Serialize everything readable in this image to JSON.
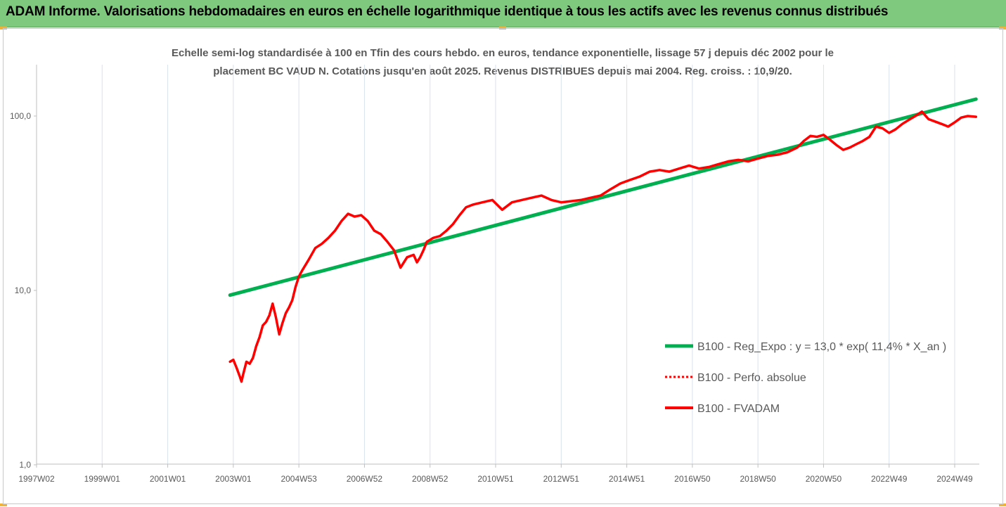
{
  "header": {
    "title": "ADAM Informe. Valorisations hebdomadaires en euros en échelle logarithmique identique à tous les actifs avec les revenus connus distribués"
  },
  "chart_data": {
    "type": "line",
    "title_line1": "Echelle semi-log standardisée à 100 en Tfin des cours hebdo. en euros, tendance exponentielle, lissage 57 j depuis déc 2002 pour le",
    "title_line2": "placement BC VAUD N. Cotations jusqu'en août 2025. Revenus DISTRIBUES depuis mai 2004. Reg. croiss. : 10,9/20.",
    "y_scale": "log",
    "ylim": [
      1,
      200
    ],
    "y_ticks": [
      1,
      10,
      100
    ],
    "y_tick_labels": [
      "1,0",
      "10,0",
      "100,0"
    ],
    "x_tick_labels": [
      "1997W02",
      "1999W01",
      "2001W01",
      "2003W01",
      "2004W53",
      "2006W52",
      "2008W52",
      "2010W51",
      "2012W51",
      "2014W51",
      "2016W50",
      "2018W50",
      "2020W50",
      "2022W49",
      "2024W49"
    ],
    "x_tick_years": [
      1997,
      1999,
      2001,
      2003,
      2005,
      2007,
      2009,
      2011,
      2013,
      2015,
      2017,
      2019,
      2021,
      2023,
      2025
    ],
    "xlim": [
      1997,
      2025.75
    ],
    "grid": "vertical",
    "legend_position": "right",
    "colors": {
      "trend": "#00b050",
      "perf": "#ff0000",
      "fvadam": "#ff0000",
      "axis": "#bfbfbf",
      "grid": "#d9e2ec"
    },
    "series": [
      {
        "name": "B100 - Reg_Expo : y = 13,0 * exp( 11,4% *  X_an )",
        "style": "solid-thick",
        "color": "#00b050",
        "x": [
          2002.9,
          2025.65
        ],
        "y": [
          9.4,
          125
        ]
      },
      {
        "name": "B100 - Perfo. absolue",
        "style": "dotted",
        "color": "#ff0000",
        "x": [],
        "y": []
      },
      {
        "name": "B100 - FVADAM",
        "style": "solid",
        "color": "#ff0000",
        "x": [
          2002.9,
          2003.0,
          2003.1,
          2003.2,
          2003.25,
          2003.3,
          2003.4,
          2003.5,
          2003.6,
          2003.7,
          2003.8,
          2003.9,
          2004.0,
          2004.1,
          2004.2,
          2004.3,
          2004.4,
          2004.5,
          2004.6,
          2004.7,
          2004.8,
          2004.9,
          2005.0,
          2005.1,
          2005.3,
          2005.5,
          2005.7,
          2005.9,
          2006.1,
          2006.3,
          2006.5,
          2006.7,
          2006.9,
          2007.1,
          2007.3,
          2007.5,
          2007.7,
          2007.9,
          2008.1,
          2008.3,
          2008.5,
          2008.6,
          2008.7,
          2008.8,
          2008.9,
          2009.1,
          2009.3,
          2009.5,
          2009.7,
          2009.9,
          2010.1,
          2010.3,
          2010.6,
          2010.9,
          2011.2,
          2011.5,
          2011.8,
          2012.1,
          2012.4,
          2012.7,
          2013.0,
          2013.3,
          2013.6,
          2013.9,
          2014.2,
          2014.5,
          2014.8,
          2015.1,
          2015.4,
          2015.7,
          2016.0,
          2016.3,
          2016.6,
          2016.9,
          2017.2,
          2017.5,
          2017.8,
          2018.1,
          2018.4,
          2018.7,
          2019.0,
          2019.3,
          2019.6,
          2019.9,
          2020.2,
          2020.4,
          2020.6,
          2020.8,
          2021.0,
          2021.2,
          2021.4,
          2021.6,
          2021.8,
          2022.0,
          2022.2,
          2022.4,
          2022.6,
          2022.8,
          2023.0,
          2023.2,
          2023.4,
          2023.6,
          2023.8,
          2024.0,
          2024.2,
          2024.4,
          2024.6,
          2024.8,
          2025.0,
          2025.2,
          2025.4,
          2025.65
        ],
        "y": [
          3.9,
          4.0,
          3.6,
          3.2,
          3.0,
          3.3,
          3.9,
          3.8,
          4.1,
          4.8,
          5.4,
          6.3,
          6.6,
          7.2,
          8.4,
          7.0,
          5.6,
          6.5,
          7.4,
          8.0,
          8.8,
          10.5,
          12.0,
          13.0,
          15.0,
          17.5,
          18.5,
          20.0,
          22.0,
          25.0,
          27.5,
          26.5,
          27.0,
          25.0,
          22.0,
          21.0,
          19.0,
          17.0,
          13.5,
          15.5,
          16.0,
          14.5,
          15.5,
          17.0,
          19.0,
          20.0,
          20.5,
          22.0,
          24.0,
          27.0,
          30.0,
          31.0,
          32.0,
          33.0,
          29.0,
          32.0,
          33.0,
          34.0,
          35.0,
          33.0,
          32.0,
          32.5,
          33.0,
          34.0,
          35.0,
          38.0,
          41.0,
          43.0,
          45.0,
          48.0,
          49.0,
          48.0,
          50.0,
          52.0,
          50.0,
          51.0,
          53.0,
          55.0,
          56.0,
          55.0,
          57.0,
          59.0,
          60.0,
          62.0,
          66.0,
          72.0,
          77.0,
          76.0,
          78.0,
          73.0,
          68.0,
          64.0,
          66.0,
          69.0,
          72.0,
          76.0,
          87.0,
          85.0,
          80.0,
          84.0,
          90.0,
          95.0,
          100.0,
          106.0,
          96.0,
          93.0,
          90.0,
          87.0,
          92.0,
          98.0,
          100.0,
          99.0
        ]
      }
    ]
  }
}
